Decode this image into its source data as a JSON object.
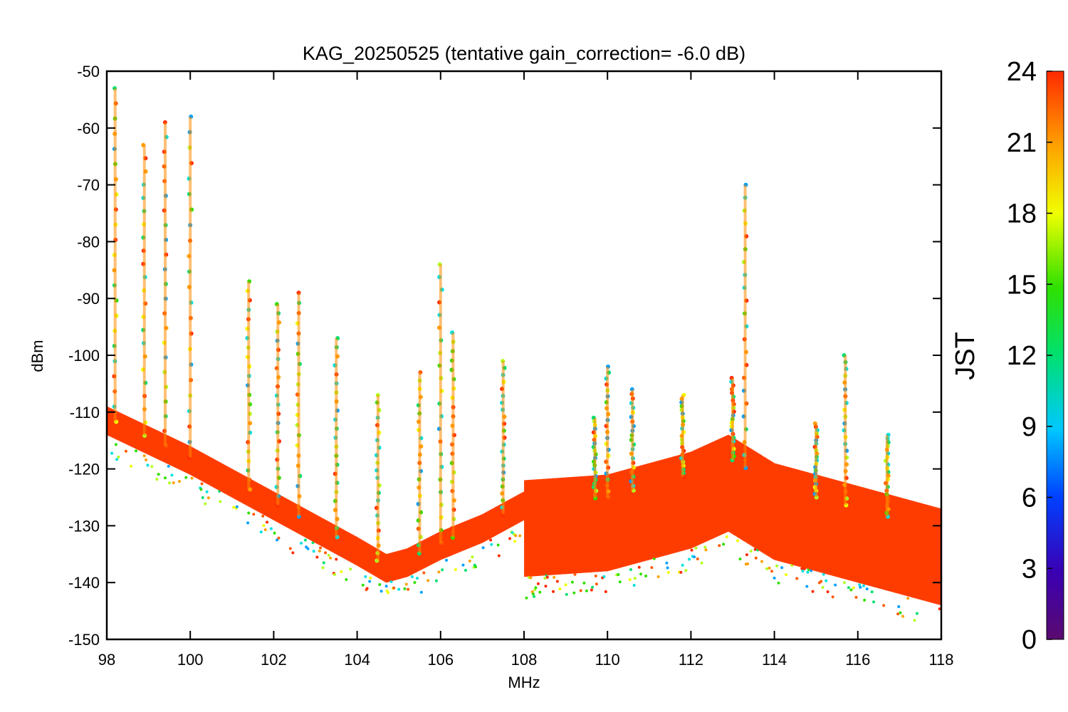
{
  "chart_data": {
    "type": "scatter",
    "title": "KAG_20250525 (tentative gain_correction= -6.0 dB)",
    "xlabel": "MHz",
    "ylabel": "dBm",
    "xlim": [
      98,
      118
    ],
    "ylim": [
      -150,
      -50
    ],
    "x_ticks": [
      "98",
      "100",
      "102",
      "104",
      "106",
      "108",
      "110",
      "112",
      "114",
      "116",
      "118"
    ],
    "y_ticks": [
      "-50",
      "-60",
      "-70",
      "-80",
      "-90",
      "-100",
      "-110",
      "-120",
      "-130",
      "-140",
      "-150"
    ],
    "grid": false,
    "colorbar": {
      "label": "JST",
      "range": [
        0,
        24
      ],
      "ticks": [
        "0",
        "3",
        "6",
        "9",
        "12",
        "15",
        "18",
        "21",
        "24"
      ],
      "colormap": "rainbow (purple-blue-cyan-green-yellow-orange-red)"
    },
    "noise_floor": [
      {
        "x": 98.0,
        "y": -111
      },
      {
        "x": 100.0,
        "y": -118
      },
      {
        "x": 102.0,
        "y": -126
      },
      {
        "x": 104.0,
        "y": -134
      },
      {
        "x": 104.7,
        "y": -137
      },
      {
        "x": 105.2,
        "y": -136
      },
      {
        "x": 106.0,
        "y": -133
      },
      {
        "x": 107.0,
        "y": -130
      },
      {
        "x": 108.0,
        "y": -126
      },
      {
        "x": 110.0,
        "y": -125
      },
      {
        "x": 112.0,
        "y": -121
      },
      {
        "x": 112.9,
        "y": -118
      },
      {
        "x": 114.0,
        "y": -123
      },
      {
        "x": 116.0,
        "y": -127
      },
      {
        "x": 118.0,
        "y": -131
      }
    ],
    "peaks": [
      {
        "x": 98.2,
        "y": -53
      },
      {
        "x": 98.9,
        "y": -63
      },
      {
        "x": 99.4,
        "y": -59
      },
      {
        "x": 100.0,
        "y": -58
      },
      {
        "x": 101.4,
        "y": -87
      },
      {
        "x": 102.1,
        "y": -91
      },
      {
        "x": 102.6,
        "y": -89
      },
      {
        "x": 103.5,
        "y": -97
      },
      {
        "x": 104.5,
        "y": -107
      },
      {
        "x": 105.5,
        "y": -103
      },
      {
        "x": 106.0,
        "y": -84
      },
      {
        "x": 106.3,
        "y": -96
      },
      {
        "x": 107.5,
        "y": -101
      },
      {
        "x": 109.7,
        "y": -111
      },
      {
        "x": 110.0,
        "y": -102
      },
      {
        "x": 110.6,
        "y": -106
      },
      {
        "x": 111.8,
        "y": -107
      },
      {
        "x": 113.0,
        "y": -104
      },
      {
        "x": 113.3,
        "y": -70
      },
      {
        "x": 115.0,
        "y": -112
      },
      {
        "x": 115.7,
        "y": -100
      },
      {
        "x": 116.7,
        "y": -114
      }
    ]
  }
}
